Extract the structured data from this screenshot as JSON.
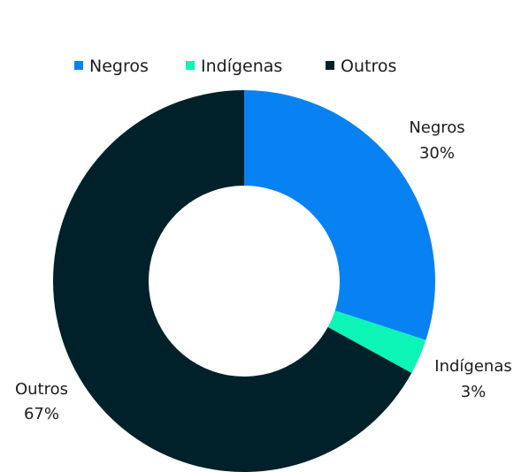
{
  "chart_data": {
    "type": "pie",
    "variant": "donut",
    "title": "",
    "legend_position": "top",
    "series": [
      {
        "name": "Negros",
        "value": 30,
        "label": "30%",
        "color": "#0882f2"
      },
      {
        "name": "Indígenas",
        "value": 3,
        "label": "3%",
        "color": "#0cf5b7"
      },
      {
        "name": "Outros",
        "value": 67,
        "label": "67%",
        "color": "#002129"
      }
    ]
  }
}
